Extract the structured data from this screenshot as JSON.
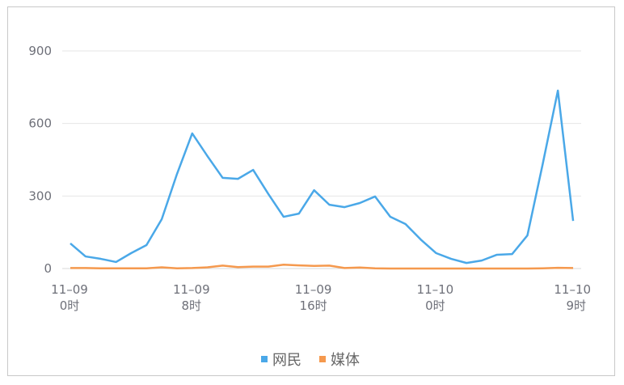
{
  "chart_data": {
    "type": "line",
    "x": [
      "11-09 0时",
      "1",
      "2",
      "3",
      "4",
      "5",
      "6",
      "7",
      "11-09 8时",
      "9",
      "10",
      "11",
      "12",
      "13",
      "14",
      "15",
      "11-09 16时",
      "17",
      "18",
      "19",
      "20",
      "21",
      "22",
      "23",
      "11-10 0时",
      "1",
      "2",
      "3",
      "4",
      "5",
      "6",
      "7",
      "8",
      "11-10 9时"
    ],
    "xticks": [
      {
        "index": 0,
        "line1": "11–09",
        "line2": "0时"
      },
      {
        "index": 8,
        "line1": "11–09",
        "line2": "8时"
      },
      {
        "index": 16,
        "line1": "11–09",
        "line2": "16时"
      },
      {
        "index": 24,
        "line1": "11–10",
        "line2": "0时"
      },
      {
        "index": 33,
        "line1": "11–10",
        "line2": "9时"
      }
    ],
    "yticks": [
      0,
      300,
      600,
      900
    ],
    "ylim": [
      0,
      900
    ],
    "grid": true,
    "legend_position": "bottom",
    "series": [
      {
        "name": "网民",
        "color": "#4aa8e8",
        "values": [
          104,
          50,
          40,
          27,
          64,
          97,
          204,
          391,
          559,
          465,
          375,
          371,
          408,
          308,
          214,
          227,
          324,
          264,
          254,
          271,
          298,
          214,
          184,
          120,
          64,
          40,
          23,
          33,
          57,
          60,
          137,
          431,
          736,
          197
        ]
      },
      {
        "name": "媒体",
        "color": "#f5994e",
        "values": [
          2,
          2,
          1,
          1,
          1,
          1,
          5,
          1,
          2,
          5,
          12,
          6,
          8,
          8,
          16,
          13,
          11,
          12,
          2,
          4,
          1,
          0,
          0,
          0,
          0,
          0,
          0,
          0,
          0,
          0,
          0,
          1,
          3,
          2
        ]
      }
    ]
  }
}
